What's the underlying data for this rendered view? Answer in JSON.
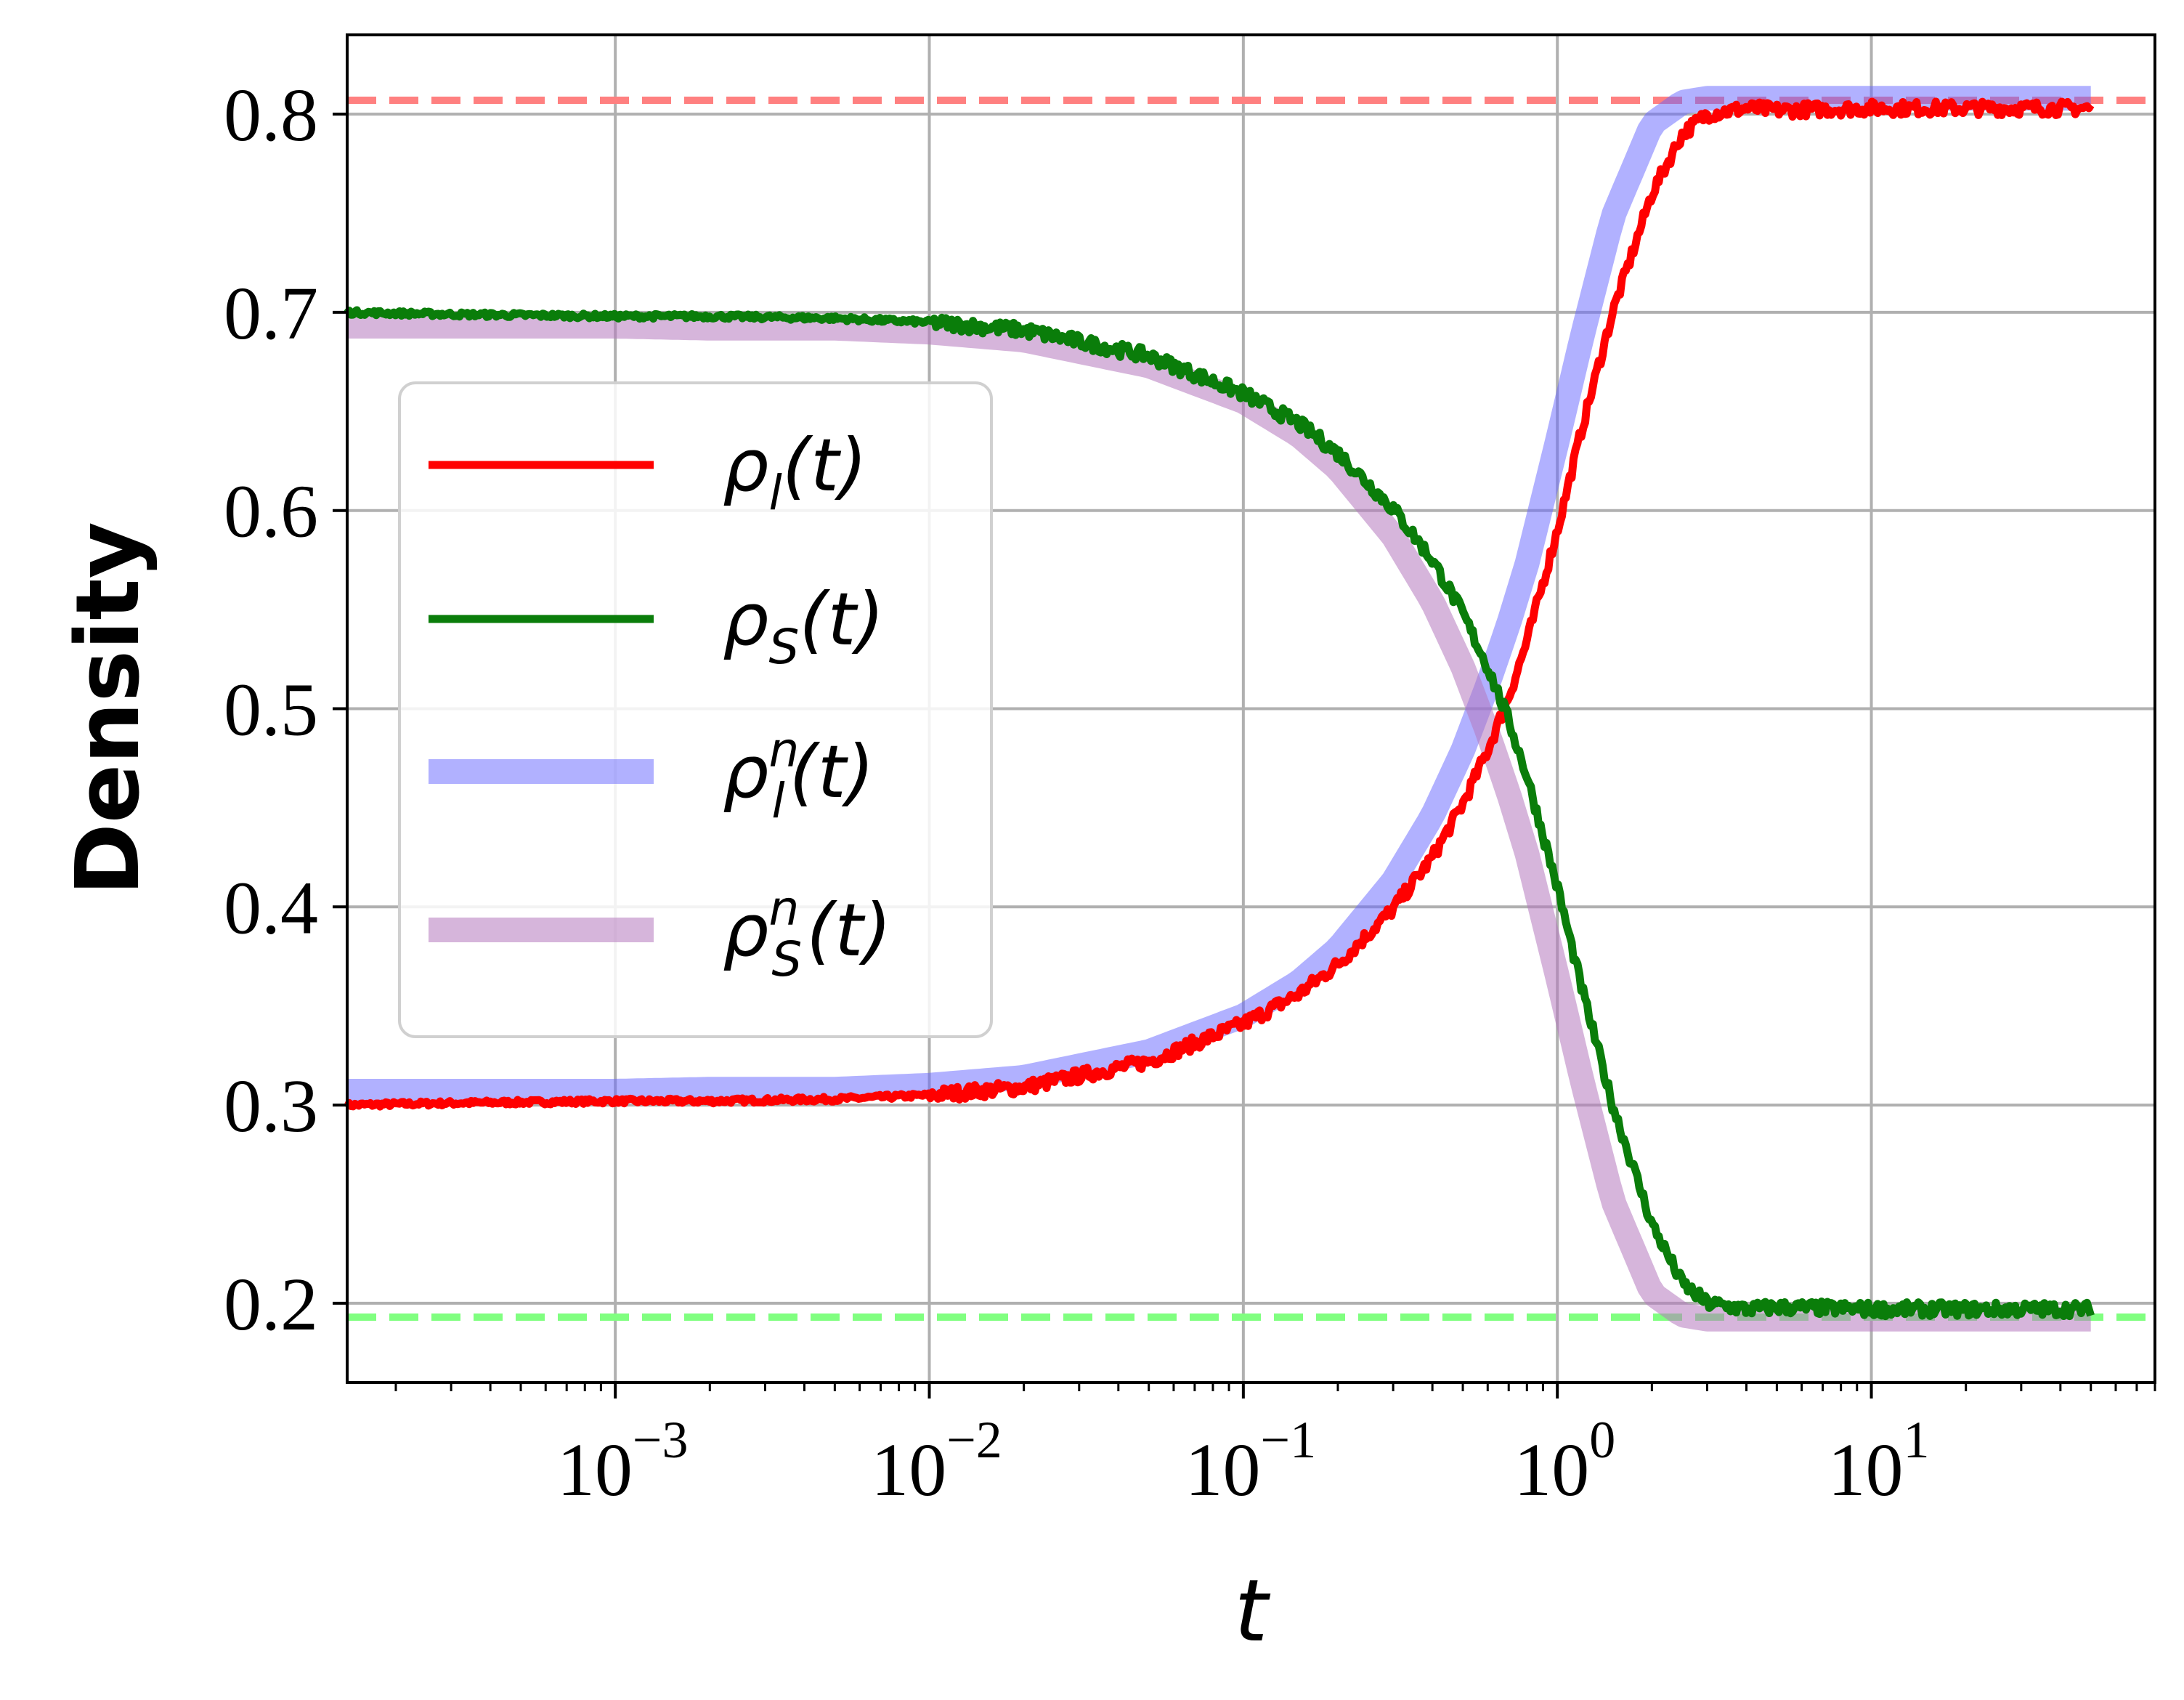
{
  "chart_data": {
    "type": "line",
    "xscale": "log",
    "xlim": [
      0.00014,
      80
    ],
    "ylim": [
      0.16,
      0.84
    ],
    "xlabel": "t",
    "ylabel": "Density",
    "grid": true,
    "legend_position": "center-left",
    "x_ticks": [
      {
        "value": 0.001,
        "base": "10",
        "exp": "−3"
      },
      {
        "value": 0.01,
        "base": "10",
        "exp": "−2"
      },
      {
        "value": 0.1,
        "base": "10",
        "exp": "−1"
      },
      {
        "value": 1,
        "base": "10",
        "exp": "0"
      },
      {
        "value": 10,
        "base": "10",
        "exp": "1"
      }
    ],
    "y_ticks": [
      {
        "value": 0.2,
        "label": "0.2"
      },
      {
        "value": 0.3,
        "label": "0.3"
      },
      {
        "value": 0.4,
        "label": "0.4"
      },
      {
        "value": 0.5,
        "label": "0.5"
      },
      {
        "value": 0.6,
        "label": "0.6"
      },
      {
        "value": 0.7,
        "label": "0.7"
      },
      {
        "value": 0.8,
        "label": "0.8"
      }
    ],
    "reference_lines": [
      {
        "y": 0.807,
        "color": "#ff8080",
        "style": "dashed"
      },
      {
        "y": 0.193,
        "color": "#80ff80",
        "style": "dashed"
      }
    ],
    "x": [
      0.00014,
      0.0003,
      0.001,
      0.002,
      0.005,
      0.01,
      0.02,
      0.05,
      0.1,
      0.15,
      0.2,
      0.3,
      0.4,
      0.5,
      0.6,
      0.7,
      0.8,
      1.0,
      1.2,
      1.5,
      2.0,
      2.5,
      3.0,
      4.0,
      5.0,
      10.0,
      20.0,
      50.0
    ],
    "series": [
      {
        "name": "ρl(t)",
        "base": "ρ",
        "sup": "",
        "sub": "l",
        "color": "#ff0000",
        "width": 11,
        "opacity": 1,
        "noise": true,
        "values": [
          0.3,
          0.301,
          0.302,
          0.302,
          0.303,
          0.305,
          0.309,
          0.322,
          0.341,
          0.356,
          0.371,
          0.399,
          0.425,
          0.452,
          0.479,
          0.506,
          0.534,
          0.59,
          0.642,
          0.7,
          0.76,
          0.79,
          0.8,
          0.803,
          0.802,
          0.803,
          0.803,
          0.803
        ]
      },
      {
        "name": "ρS(t)",
        "base": "ρ",
        "sup": "",
        "sub": "S",
        "color": "#0a7d0a",
        "width": 11,
        "opacity": 1,
        "noise": true,
        "values": [
          0.7,
          0.699,
          0.698,
          0.698,
          0.697,
          0.695,
          0.691,
          0.678,
          0.659,
          0.644,
          0.629,
          0.601,
          0.575,
          0.548,
          0.521,
          0.494,
          0.466,
          0.41,
          0.358,
          0.3,
          0.24,
          0.21,
          0.2,
          0.197,
          0.198,
          0.197,
          0.197,
          0.197
        ]
      },
      {
        "name": "ρln(t)",
        "base": "ρ",
        "sup": "n",
        "sub": "l",
        "color": "#6464ff",
        "width": 34,
        "opacity": 0.5,
        "noise": false,
        "values": [
          0.307,
          0.307,
          0.307,
          0.308,
          0.308,
          0.31,
          0.314,
          0.327,
          0.345,
          0.362,
          0.379,
          0.413,
          0.446,
          0.479,
          0.512,
          0.543,
          0.573,
          0.635,
          0.688,
          0.748,
          0.795,
          0.806,
          0.808,
          0.808,
          0.808,
          0.808,
          0.808,
          0.808
        ]
      },
      {
        "name": "ρSn(t)",
        "base": "ρ",
        "sup": "n",
        "sub": "S",
        "color": "#b478be",
        "width": 34,
        "opacity": 0.55,
        "noise": false,
        "values": [
          0.693,
          0.693,
          0.693,
          0.692,
          0.692,
          0.69,
          0.686,
          0.673,
          0.655,
          0.638,
          0.621,
          0.587,
          0.554,
          0.521,
          0.488,
          0.457,
          0.427,
          0.365,
          0.312,
          0.252,
          0.205,
          0.194,
          0.192,
          0.192,
          0.192,
          0.192,
          0.192,
          0.192
        ]
      }
    ]
  }
}
